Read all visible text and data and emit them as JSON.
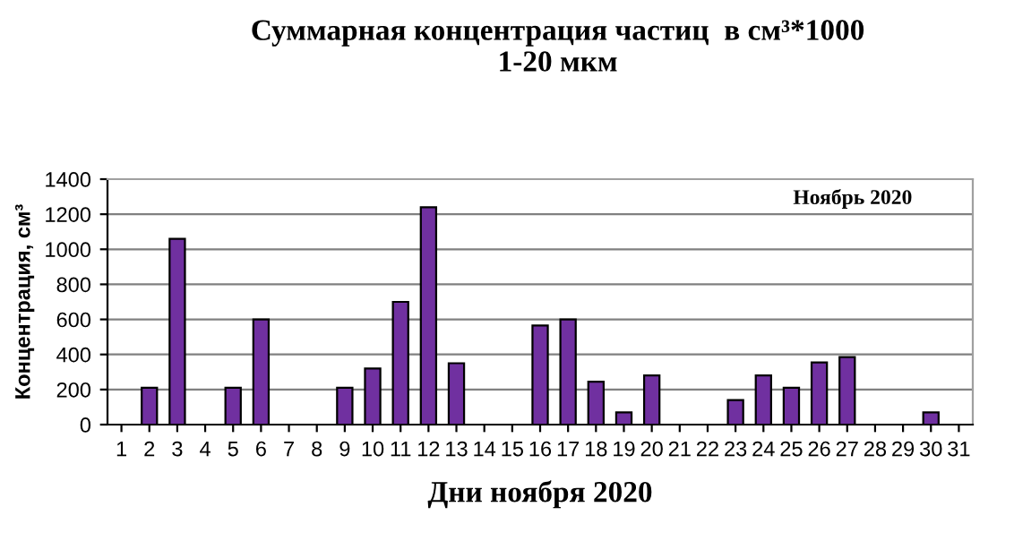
{
  "chart_data": {
    "type": "bar",
    "title": "Суммарная концентрация частиц  в см³*1000\n1-20 мкм",
    "xlabel": "Дни ноября 2020",
    "ylabel": "Концентрация, см³",
    "annotations": [
      "Ноябрь 2020"
    ],
    "categories": [
      "1",
      "2",
      "3",
      "4",
      "5",
      "6",
      "7",
      "8",
      "9",
      "10",
      "11",
      "12",
      "13",
      "14",
      "15",
      "16",
      "17",
      "18",
      "19",
      "20",
      "21",
      "22",
      "23",
      "24",
      "25",
      "26",
      "27",
      "28",
      "29",
      "30",
      "31"
    ],
    "values": [
      null,
      210,
      1060,
      null,
      210,
      600,
      null,
      null,
      210,
      320,
      700,
      1240,
      350,
      null,
      null,
      565,
      600,
      245,
      70,
      280,
      null,
      null,
      140,
      280,
      210,
      355,
      385,
      null,
      null,
      70,
      null
    ],
    "color": "#7030a0",
    "ylim": [
      0,
      1400
    ],
    "yticks": [
      0,
      200,
      400,
      600,
      800,
      1000,
      1200,
      1400
    ],
    "grid": "y",
    "legend": false
  }
}
